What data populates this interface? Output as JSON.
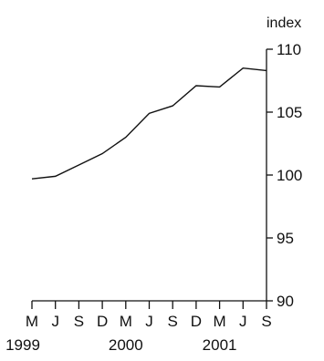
{
  "chart_data": {
    "type": "line",
    "ylabel": "index",
    "ylim": [
      90,
      110
    ],
    "yticks": [
      90,
      95,
      100,
      105,
      110
    ],
    "grid": false,
    "x_tick_labels": [
      "M",
      "J",
      "S",
      "D",
      "M",
      "J",
      "S",
      "D",
      "M",
      "J",
      "S"
    ],
    "year_labels": [
      {
        "label": "1999",
        "tick_index": 0
      },
      {
        "label": "2000",
        "tick_index": 4
      },
      {
        "label": "2001",
        "tick_index": 8
      }
    ],
    "series": [
      {
        "values": [
          99.7,
          99.9,
          100.8,
          101.7,
          103.0,
          104.9,
          105.5,
          107.1,
          107.0,
          108.5,
          108.3
        ]
      }
    ],
    "colors": {
      "line": "#111111",
      "axis": "#111111"
    }
  }
}
